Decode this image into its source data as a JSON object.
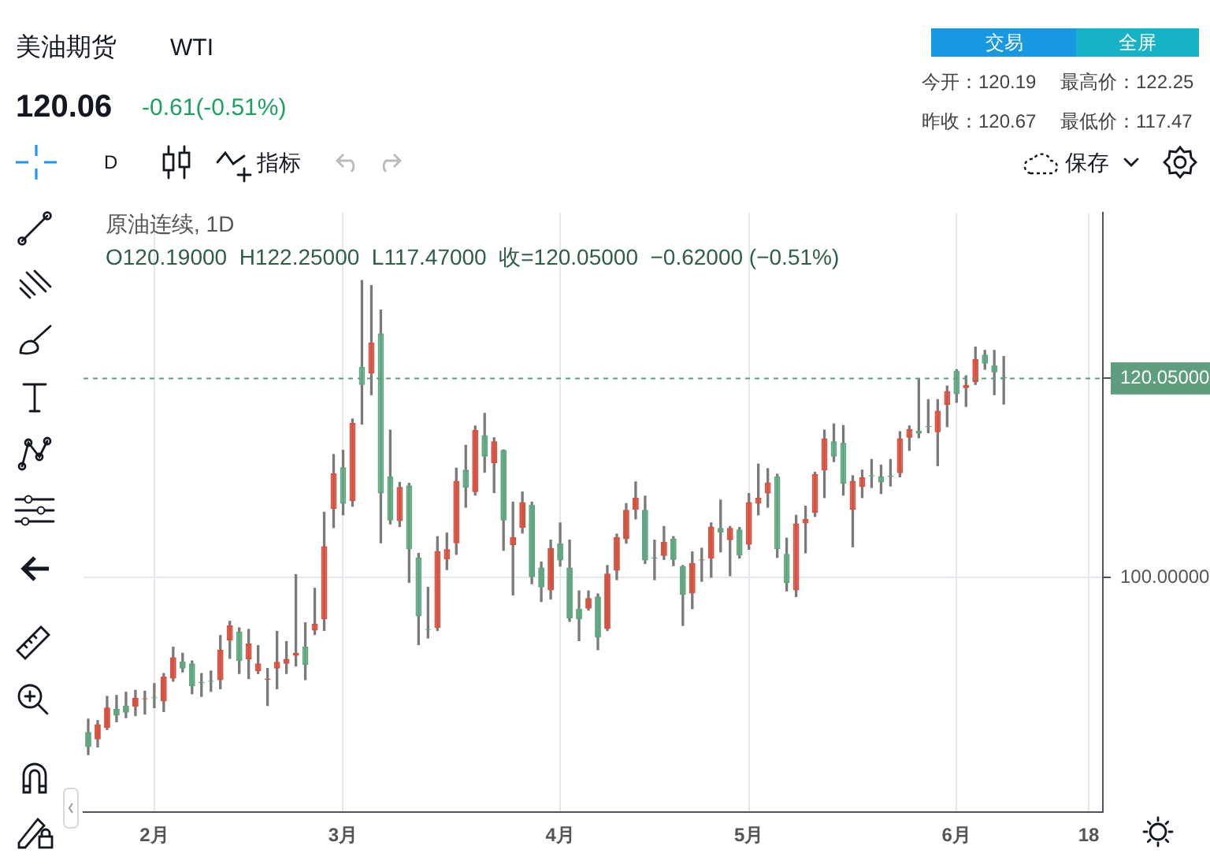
{
  "chart_data": {
    "type": "candlestick",
    "title": "美油期货",
    "subtitle": "WTI",
    "categories": [
      null,
      null,
      null,
      null,
      null,
      null,
      null,
      "2月",
      null,
      null,
      null,
      null,
      null,
      null,
      null,
      null,
      null,
      null,
      null,
      null,
      null,
      null,
      null,
      null,
      null,
      null,
      null,
      "3月",
      null,
      null,
      null,
      null,
      null,
      null,
      null,
      null,
      null,
      null,
      null,
      null,
      null,
      null,
      null,
      null,
      null,
      null,
      null,
      null,
      null,
      null,
      "4月",
      null,
      null,
      null,
      null,
      null,
      null,
      null,
      null,
      null,
      null,
      null,
      null,
      null,
      null,
      null,
      null,
      null,
      null,
      null,
      "5月",
      null,
      null,
      null,
      null,
      null,
      null,
      null,
      null,
      null,
      null,
      null,
      null,
      null,
      null,
      null,
      null,
      null,
      null,
      null,
      null,
      null,
      "6月",
      null,
      null,
      null,
      null,
      null,
      null,
      null,
      null,
      null,
      null,
      null,
      null,
      null,
      "18",
      null
    ],
    "ohlc": [
      [
        84.49,
        85.77,
        82.19,
        82.96
      ],
      [
        83.72,
        85.61,
        82.96,
        85.26
      ],
      [
        84.9,
        88.06,
        84.74,
        86.94
      ],
      [
        86.79,
        88.16,
        85.51,
        86.12
      ],
      [
        87.14,
        88.47,
        85.92,
        86.43
      ],
      [
        87.04,
        88.67,
        86.12,
        87.91
      ],
      [
        87.76,
        88.57,
        86.28,
        87.86
      ],
      [
        87.96,
        89.34,
        86.94,
        87.86
      ],
      [
        87.55,
        90.36,
        86.53,
        90.05
      ],
      [
        89.85,
        93.01,
        89.59,
        91.99
      ],
      [
        91.58,
        92.4,
        90.51,
        90.87
      ],
      [
        91.38,
        91.63,
        88.32,
        89.08
      ],
      [
        89.49,
        90.36,
        88.06,
        89.39
      ],
      [
        89.64,
        90.61,
        88.57,
        89.54
      ],
      [
        89.69,
        94.18,
        88.83,
        92.76
      ],
      [
        93.67,
        95.61,
        91.89,
        95.2
      ],
      [
        94.59,
        94.95,
        90.36,
        91.63
      ],
      [
        91.79,
        94.8,
        89.85,
        93.37
      ],
      [
        90.61,
        93.16,
        90.36,
        91.38
      ],
      [
        89.74,
        90.87,
        87.14,
        89.85
      ],
      [
        90.87,
        94.59,
        88.83,
        91.53
      ],
      [
        91.33,
        93.57,
        90.36,
        91.84
      ],
      [
        92.14,
        100.31,
        91.12,
        92.45
      ],
      [
        93.06,
        95.46,
        89.74,
        91.22
      ],
      [
        94.69,
        98.93,
        94.29,
        95.36
      ],
      [
        95.82,
        106.58,
        94.69,
        103.16
      ],
      [
        106.94,
        112.4,
        105.05,
        110.51
      ],
      [
        111.12,
        112.81,
        106.33,
        107.45
      ],
      [
        107.7,
        115.97,
        107.19,
        115.56
      ],
      [
        121.22,
        129.9,
        115.46,
        119.39
      ],
      [
        120.56,
        129.39,
        118.42,
        123.67
      ],
      [
        124.59,
        126.94,
        103.52,
        108.47
      ],
      [
        110.2,
        114.85,
        105.41,
        105.77
      ],
      [
        105.71,
        109.59,
        105.15,
        109.13
      ],
      [
        109.29,
        109.49,
        99.54,
        102.86
      ],
      [
        102.04,
        102.45,
        93.27,
        96.12
      ],
      [
        94.85,
        99.03,
        93.93,
        94.74
      ],
      [
        94.95,
        104.13,
        94.69,
        102.7
      ],
      [
        101.84,
        104.49,
        100.82,
        102.86
      ],
      [
        103.47,
        111.02,
        102.35,
        109.74
      ],
      [
        110.87,
        113.32,
        107.09,
        109.08
      ],
      [
        108.62,
        115.26,
        108.32,
        114.85
      ],
      [
        114.34,
        116.53,
        110.61,
        112.19
      ],
      [
        111.53,
        114.08,
        108.57,
        113.72
      ],
      [
        112.86,
        112.86,
        102.76,
        105.77
      ],
      [
        103.27,
        107.6,
        98.27,
        104.08
      ],
      [
        105.0,
        108.62,
        104.49,
        107.6
      ],
      [
        107.35,
        107.6,
        99.39,
        100.05
      ],
      [
        101.02,
        101.58,
        97.6,
        99.03
      ],
      [
        98.72,
        103.78,
        97.86,
        103.01
      ],
      [
        103.47,
        105.51,
        101.17,
        101.73
      ],
      [
        101.02,
        103.78,
        95.61,
        95.92
      ],
      [
        96.89,
        98.67,
        93.67,
        95.82
      ],
      [
        96.89,
        98.67,
        96.73,
        97.96
      ],
      [
        98.11,
        98.37,
        92.76,
        93.98
      ],
      [
        94.85,
        101.22,
        94.69,
        100.41
      ],
      [
        100.71,
        104.39,
        99.8,
        104.08
      ],
      [
        103.88,
        107.45,
        103.47,
        106.84
      ],
      [
        106.84,
        109.64,
        105.92,
        108.06
      ],
      [
        106.84,
        108.21,
        101.43,
        101.73
      ],
      [
        102.04,
        103.78,
        99.8,
        101.94
      ],
      [
        102.19,
        105.15,
        101.84,
        103.62
      ],
      [
        103.93,
        104.13,
        101.22,
        101.79
      ],
      [
        101.17,
        101.22,
        95.2,
        98.27
      ],
      [
        98.42,
        102.6,
        96.89,
        101.48
      ],
      [
        101.73,
        102.96,
        99.64,
        101.84
      ],
      [
        101.94,
        105.51,
        100.05,
        105.15
      ],
      [
        105.0,
        107.81,
        102.6,
        104.54
      ],
      [
        103.78,
        105.15,
        100.2,
        105.0
      ],
      [
        104.85,
        105.05,
        101.99,
        102.24
      ],
      [
        103.32,
        108.47,
        102.86,
        107.6
      ],
      [
        107.45,
        111.43,
        106.33,
        108.06
      ],
      [
        108.47,
        110.97,
        107.09,
        109.59
      ],
      [
        110.2,
        110.41,
        102.04,
        102.86
      ],
      [
        102.4,
        103.98,
        98.67,
        99.44
      ],
      [
        98.72,
        106.28,
        98.11,
        105.46
      ],
      [
        105.46,
        107.19,
        102.5,
        105.92
      ],
      [
        106.53,
        110.61,
        106.17,
        110.41
      ],
      [
        110.82,
        114.85,
        108.06,
        114.03
      ],
      [
        113.72,
        115.46,
        111.68,
        112.19
      ],
      [
        113.57,
        115.31,
        108.32,
        109.44
      ],
      [
        106.84,
        110.26,
        103.11,
        109.74
      ],
      [
        109.13,
        110.82,
        108.06,
        110.1
      ],
      [
        110.31,
        111.89,
        109.08,
        110.2
      ],
      [
        110.2,
        111.33,
        108.47,
        109.59
      ],
      [
        110.26,
        111.89,
        109.23,
        110.15
      ],
      [
        110.51,
        114.69,
        110.15,
        114.03
      ],
      [
        114.08,
        115.26,
        112.81,
        114.95
      ],
      [
        114.8,
        119.95,
        114.08,
        114.49
      ],
      [
        115.26,
        117.91,
        114.59,
        115.15
      ],
      [
        114.64,
        117.91,
        111.28,
        116.79
      ],
      [
        117.4,
        119.29,
        115.2,
        118.78
      ],
      [
        120.82,
        120.92,
        117.65,
        118.47
      ],
      [
        119.08,
        120.31,
        117.24,
        119.39
      ],
      [
        119.69,
        123.21,
        119.44,
        121.99
      ],
      [
        122.45,
        122.86,
        120.97,
        121.53
      ],
      [
        121.38,
        122.86,
        118.42,
        120.67
      ],
      [
        120.19,
        122.25,
        117.47,
        120.05
      ],
      null,
      null,
      null,
      null,
      null,
      null,
      null,
      null,
      null,
      null
    ],
    "colors": [
      "#5fa77f",
      "#d9503e",
      "#d9503e",
      "#5fa77f",
      "#5fa77f",
      "#d9503e",
      "#d9503e",
      "#5fa77f",
      "#d9503e",
      "#d9503e",
      "#5fa77f",
      "#5fa77f",
      "#5fa77f",
      "#5fa77f",
      "#d9503e",
      "#d9503e",
      "#5fa77f",
      "#d9503e",
      "#d9503e",
      "#d9503e",
      "#d9503e",
      "#d9503e",
      "#d9503e",
      "#5fa77f",
      "#d9503e",
      "#d9503e",
      "#d9503e",
      "#5fa77f",
      "#d9503e",
      "#5fa77f",
      "#d9503e",
      "#5fa77f",
      "#5fa77f",
      "#d9503e",
      "#5fa77f",
      "#5fa77f",
      "#5fa77f",
      "#d9503e",
      "#d9503e",
      "#d9503e",
      "#5fa77f",
      "#d9503e",
      "#5fa77f",
      "#d9503e",
      "#5fa77f",
      "#d9503e",
      "#d9503e",
      "#5fa77f",
      "#5fa77f",
      "#d9503e",
      "#5fa77f",
      "#5fa77f",
      "#5fa77f",
      "#d9503e",
      "#5fa77f",
      "#d9503e",
      "#d9503e",
      "#d9503e",
      "#d9503e",
      "#5fa77f",
      "#5fa77f",
      "#d9503e",
      "#5fa77f",
      "#5fa77f",
      "#d9503e",
      "#d9503e",
      "#d9503e",
      "#5fa77f",
      "#d9503e",
      "#5fa77f",
      "#d9503e",
      "#d9503e",
      "#d9503e",
      "#5fa77f",
      "#5fa77f",
      "#d9503e",
      "#d9503e",
      "#d9503e",
      "#d9503e",
      "#5fa77f",
      "#5fa77f",
      "#d9503e",
      "#d9503e",
      "#5fa77f",
      "#5fa77f",
      "#5fa77f",
      "#d9503e",
      "#d9503e",
      "#5fa77f",
      "#5fa77f",
      "#d9503e",
      "#d9503e",
      "#5fa77f",
      "#d9503e",
      "#d9503e",
      "#5fa77f",
      "#5fa77f",
      "#5fa77f",
      null,
      null,
      null,
      null,
      null,
      null,
      null,
      null,
      null,
      null
    ],
    "ylim": [
      76.4,
      136.7
    ],
    "yticks": [
      {
        "value": 100,
        "label": "100.00000"
      },
      {
        "value": 120.05,
        "label": "120.05000"
      }
    ],
    "grid": true,
    "ref_lines": [
      {
        "axis": "y",
        "value": 120.05,
        "color": "#5e9e7c",
        "line_style": "dashed"
      }
    ],
    "annotations": [
      "120.06",
      "-0.61(-0.51%)",
      "今开：120.19",
      "最高价：122.25",
      "昨收：120.67",
      "最低价：117.47",
      "交易",
      "全屏",
      "D",
      "指标",
      "保存",
      "原油连续, 1D",
      "O120.19000  H122.25000  L117.47000  收=120.05000  −0.62000 (−0.51%)"
    ]
  }
}
